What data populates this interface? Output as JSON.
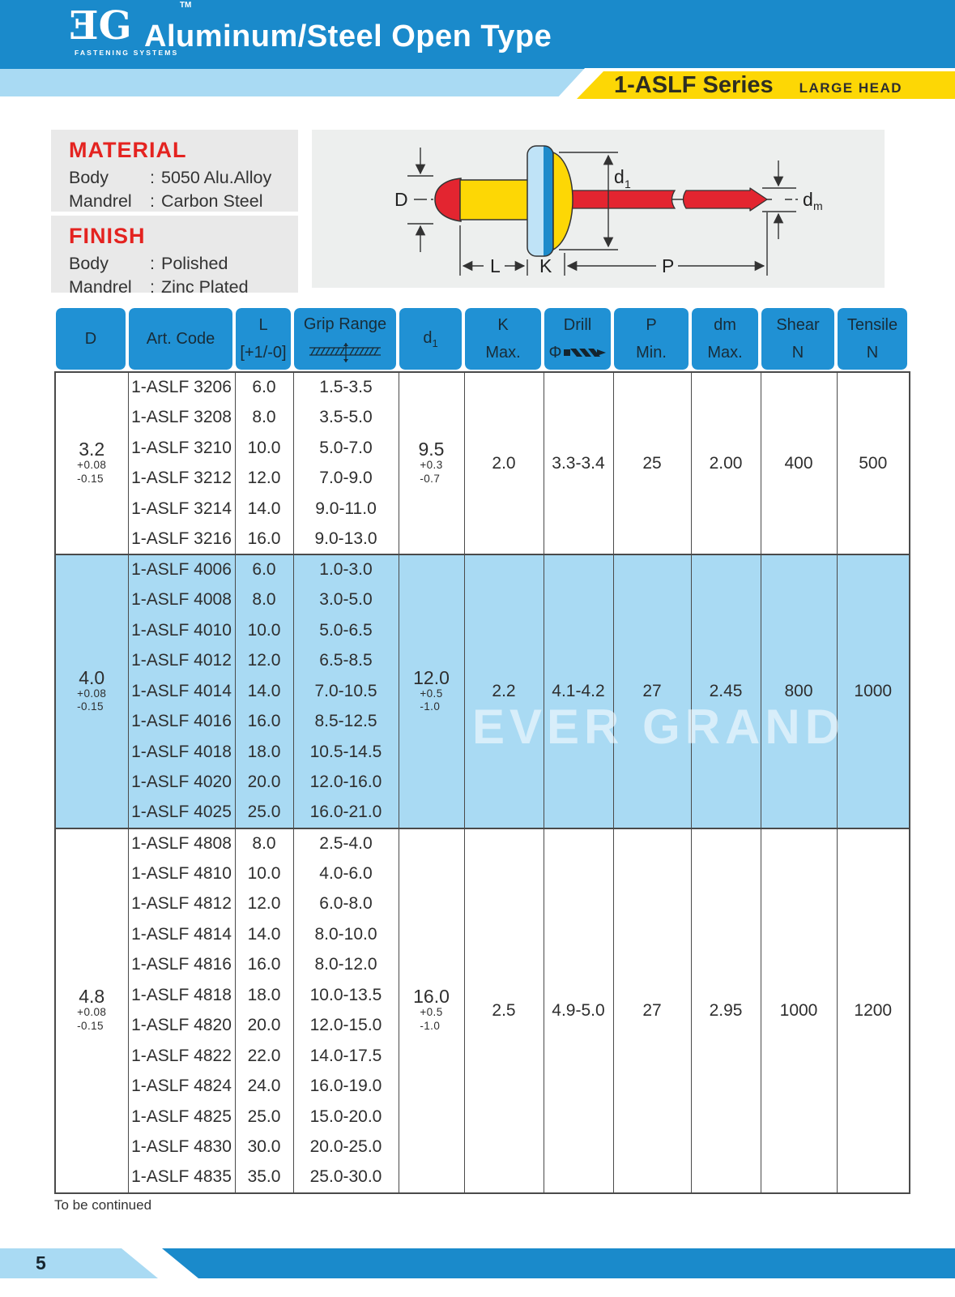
{
  "page": {
    "logo": {
      "text": "EG",
      "tm": "TM",
      "subtitle": "FASTENING SYSTEMS"
    },
    "title": "Aluminum/Steel Open Type",
    "series_banner": {
      "series": "1-ASLF Series",
      "head_type": "LARGE HEAD"
    },
    "material": {
      "heading": "MATERIAL",
      "rows": [
        {
          "label": "Body",
          "colon": ":",
          "value": "5050 Alu.Alloy"
        },
        {
          "label": "Mandrel",
          "colon": ":",
          "value": "Carbon Steel"
        }
      ]
    },
    "finish": {
      "heading": "FINISH",
      "rows": [
        {
          "label": "Body",
          "colon": ":",
          "value": "Polished"
        },
        {
          "label": "Mandrel",
          "colon": ":",
          "value": "Zinc Plated"
        }
      ]
    },
    "watermark": "EVER GRAND",
    "to_be_continued": "To be continued",
    "page_number": "5"
  },
  "diagram": {
    "labels": {
      "D": "D",
      "d1_main": "d",
      "d1_sub": "1",
      "dm_main": "d",
      "dm_sub": "m",
      "L": "L",
      "K": "K",
      "P": "P"
    }
  },
  "colors": {
    "header_blue": "#1a8acb",
    "light_blue": "#a9daf3",
    "banner_yellow": "#fdd705",
    "table_header_blue": "#2091d4",
    "highlight_row": "#a9daf3",
    "accent_red": "#e42320"
  },
  "table": {
    "headers": [
      {
        "line1": "D"
      },
      {
        "line1": "Art. Code"
      },
      {
        "line1": "L",
        "line2": "[+1/-0]"
      },
      {
        "line1": "Grip Range",
        "icon": "grip-plate-icon"
      },
      {
        "line1": "d",
        "sub": "1"
      },
      {
        "line1": "K",
        "line2": "Max."
      },
      {
        "line1": "Drill",
        "line2": "Φ",
        "icon": "drill-bit-icon"
      },
      {
        "line1": "P",
        "line2": "Min."
      },
      {
        "line1": "dm",
        "line2": "Max."
      },
      {
        "line1": "Shear",
        "line2": "N"
      },
      {
        "line1": "Tensile",
        "line2": "N"
      }
    ],
    "groups": [
      {
        "d_main": "3.2",
        "d_plus": "+0.08",
        "d_minus": "-0.15",
        "d1_main": "9.5",
        "d1_plus": "+0.3",
        "d1_minus": "-0.7",
        "k": "2.0",
        "drill": "3.3-3.4",
        "p": "25",
        "dm": "2.00",
        "shear": "400",
        "tensile": "500",
        "highlight": false,
        "rows": [
          [
            "1-ASLF 3206",
            "6.0",
            "1.5-3.5"
          ],
          [
            "1-ASLF 3208",
            "8.0",
            "3.5-5.0"
          ],
          [
            "1-ASLF 3210",
            "10.0",
            "5.0-7.0"
          ],
          [
            "1-ASLF 3212",
            "12.0",
            "7.0-9.0"
          ],
          [
            "1-ASLF 3214",
            "14.0",
            "9.0-11.0"
          ],
          [
            "1-ASLF 3216",
            "16.0",
            "9.0-13.0"
          ]
        ]
      },
      {
        "d_main": "4.0",
        "d_plus": "+0.08",
        "d_minus": "-0.15",
        "d1_main": "12.0",
        "d1_plus": "+0.5",
        "d1_minus": "-1.0",
        "k": "2.2",
        "drill": "4.1-4.2",
        "p": "27",
        "dm": "2.45",
        "shear": "800",
        "tensile": "1000",
        "highlight": true,
        "rows": [
          [
            "1-ASLF 4006",
            "6.0",
            "1.0-3.0"
          ],
          [
            "1-ASLF 4008",
            "8.0",
            "3.0-5.0"
          ],
          [
            "1-ASLF 4010",
            "10.0",
            "5.0-6.5"
          ],
          [
            "1-ASLF 4012",
            "12.0",
            "6.5-8.5"
          ],
          [
            "1-ASLF 4014",
            "14.0",
            "7.0-10.5"
          ],
          [
            "1-ASLF 4016",
            "16.0",
            "8.5-12.5"
          ],
          [
            "1-ASLF 4018",
            "18.0",
            "10.5-14.5"
          ],
          [
            "1-ASLF 4020",
            "20.0",
            "12.0-16.0"
          ],
          [
            "1-ASLF 4025",
            "25.0",
            "16.0-21.0"
          ]
        ]
      },
      {
        "d_main": "4.8",
        "d_plus": "+0.08",
        "d_minus": "-0.15",
        "d1_main": "16.0",
        "d1_plus": "+0.5",
        "d1_minus": "-1.0",
        "k": "2.5",
        "drill": "4.9-5.0",
        "p": "27",
        "dm": "2.95",
        "shear": "1000",
        "tensile": "1200",
        "highlight": false,
        "rows": [
          [
            "1-ASLF 4808",
            "8.0",
            "2.5-4.0"
          ],
          [
            "1-ASLF 4810",
            "10.0",
            "4.0-6.0"
          ],
          [
            "1-ASLF 4812",
            "12.0",
            "6.0-8.0"
          ],
          [
            "1-ASLF 4814",
            "14.0",
            "8.0-10.0"
          ],
          [
            "1-ASLF 4816",
            "16.0",
            "8.0-12.0"
          ],
          [
            "1-ASLF 4818",
            "18.0",
            "10.0-13.5"
          ],
          [
            "1-ASLF 4820",
            "20.0",
            "12.0-15.0"
          ],
          [
            "1-ASLF 4822",
            "22.0",
            "14.0-17.5"
          ],
          [
            "1-ASLF 4824",
            "24.0",
            "16.0-19.0"
          ],
          [
            "1-ASLF 4825",
            "25.0",
            "15.0-20.0"
          ],
          [
            "1-ASLF 4830",
            "30.0",
            "20.0-25.0"
          ],
          [
            "1-ASLF 4835",
            "35.0",
            "25.0-30.0"
          ]
        ]
      }
    ]
  }
}
